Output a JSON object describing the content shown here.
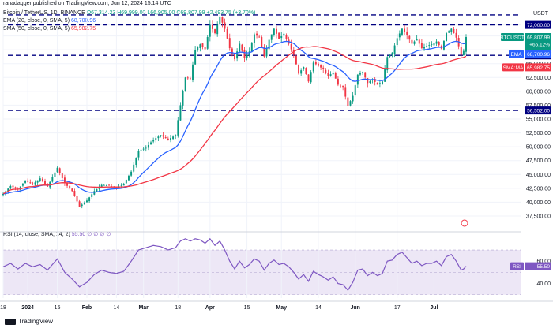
{
  "header": {
    "author": "ranadagger published on TradingView.com, Jun 12, 2024 15:14 UTC",
    "symbol_line": "Bitcoin / TetherUS, 1D, BINANCE",
    "ohlc": "O67,314.23 H69,999.00 L66,905.00 C69,807.99 +2,493.75 (+3.70%)",
    "ema_line": "EMA (20, close, 0, SMA, 5)",
    "ema_value": "68,700.96",
    "sma_line": "SMA (50, close, 0, SMA, 5)",
    "sma_value": "65,982.75",
    "rsi_line": "RSI (14, close, SMA, 14, 2)",
    "rsi_value": "55.50",
    "rsi_extra": "∅ ∅ ∅ ∅",
    "currency": "USDT",
    "watermark": "TradingView"
  },
  "colors": {
    "up": "#089981",
    "down": "#f23645",
    "ema": "#2962ff",
    "sma": "#f23645",
    "rsi": "#7e57c2",
    "level": "#000080",
    "rsi_band": "#ede7f6"
  },
  "chart_data": {
    "type": "candlestick",
    "x_tick_labels": [
      "18",
      "2024",
      "15",
      "Feb",
      "14",
      "Mar",
      "18",
      "Apr",
      "15",
      "May",
      "14",
      "Jun",
      "17",
      "Jul"
    ],
    "y_ticks": [
      "72,000.00",
      "70,000.00",
      "67,500.00",
      "65,000.00",
      "62,500.00",
      "60,000.00",
      "57,500.00",
      "55,000.00",
      "52,500.00",
      "50,000.00",
      "47,500.00",
      "45,000.00",
      "42,500.00",
      "40,000.00",
      "37,500.00"
    ],
    "ylim": [
      35500,
      74500
    ],
    "levels": [
      {
        "value": 73800,
        "label": ""
      },
      {
        "value": 72000,
        "label": "72,000.00"
      },
      {
        "value": 66500,
        "label": "66,500.00"
      },
      {
        "value": 56552,
        "label": "56,552.00"
      }
    ],
    "price_badges": [
      {
        "label": "BTCUSDT",
        "text": "69,807.99",
        "sub": "+65.12%",
        "sub2": "08:45:44"
      },
      {
        "label": "EMA",
        "text": "68,700.96"
      },
      {
        "label": "SMA:MA",
        "text": "65,982.75"
      }
    ],
    "series": [
      {
        "name": "EMA (20)",
        "indicator": "ema20"
      },
      {
        "name": "SMA (50)",
        "indicator": "sma50"
      }
    ],
    "close_anchors": [
      [
        0,
        41500
      ],
      [
        3,
        42900
      ],
      [
        6,
        42300
      ],
      [
        9,
        43900
      ],
      [
        12,
        43200
      ],
      [
        15,
        44300
      ],
      [
        18,
        42800
      ],
      [
        22,
        46200
      ],
      [
        25,
        43400
      ],
      [
        28,
        42000
      ],
      [
        31,
        39200
      ],
      [
        34,
        40300
      ],
      [
        37,
        42000
      ],
      [
        40,
        43100
      ],
      [
        43,
        43000
      ],
      [
        46,
        42600
      ],
      [
        49,
        43300
      ],
      [
        52,
        45500
      ],
      [
        55,
        49300
      ],
      [
        58,
        49800
      ],
      [
        61,
        51300
      ],
      [
        64,
        52100
      ],
      [
        67,
        51300
      ],
      [
        70,
        52100
      ],
      [
        72,
        57500
      ],
      [
        74,
        62500
      ],
      [
        76,
        62200
      ],
      [
        78,
        67500
      ],
      [
        80,
        68500
      ],
      [
        82,
        67600
      ],
      [
        84,
        72000
      ],
      [
        86,
        70500
      ],
      [
        88,
        73500
      ],
      [
        90,
        71300
      ],
      [
        92,
        67800
      ],
      [
        94,
        65800
      ],
      [
        96,
        68600
      ],
      [
        98,
        66000
      ],
      [
        100,
        67200
      ],
      [
        102,
        70300
      ],
      [
        104,
        69800
      ],
      [
        106,
        66300
      ],
      [
        108,
        69300
      ],
      [
        110,
        71300
      ],
      [
        112,
        69500
      ],
      [
        114,
        70400
      ],
      [
        116,
        68600
      ],
      [
        118,
        66600
      ],
      [
        120,
        63200
      ],
      [
        122,
        64400
      ],
      [
        124,
        61800
      ],
      [
        126,
        65200
      ],
      [
        128,
        64600
      ],
      [
        130,
        64000
      ],
      [
        132,
        62800
      ],
      [
        134,
        63400
      ],
      [
        136,
        61200
      ],
      [
        138,
        60800
      ],
      [
        140,
        57300
      ],
      [
        142,
        59200
      ],
      [
        144,
        63000
      ],
      [
        146,
        63500
      ],
      [
        148,
        61500
      ],
      [
        150,
        62200
      ],
      [
        152,
        61200
      ],
      [
        154,
        61800
      ],
      [
        156,
        66200
      ],
      [
        158,
        67000
      ],
      [
        160,
        69600
      ],
      [
        162,
        71300
      ],
      [
        164,
        70100
      ],
      [
        166,
        68600
      ],
      [
        168,
        69400
      ],
      [
        170,
        67800
      ],
      [
        172,
        68200
      ],
      [
        174,
        68500
      ],
      [
        176,
        69000
      ],
      [
        178,
        67700
      ],
      [
        180,
        70500
      ],
      [
        182,
        71300
      ],
      [
        184,
        69700
      ],
      [
        186,
        66600
      ],
      [
        187,
        67300
      ],
      [
        188,
        69808
      ]
    ],
    "rsi": {
      "ylim": [
        27,
        82
      ],
      "ticks": [
        "60.00",
        "40.00"
      ],
      "band": [
        30,
        70
      ],
      "value": 55.5,
      "anchors": [
        [
          0,
          55
        ],
        [
          3,
          58
        ],
        [
          6,
          53
        ],
        [
          9,
          58
        ],
        [
          12,
          55
        ],
        [
          15,
          57
        ],
        [
          18,
          52
        ],
        [
          22,
          62
        ],
        [
          25,
          50
        ],
        [
          28,
          44
        ],
        [
          31,
          37
        ],
        [
          34,
          41
        ],
        [
          37,
          48
        ],
        [
          40,
          52
        ],
        [
          43,
          50
        ],
        [
          46,
          49
        ],
        [
          49,
          51
        ],
        [
          52,
          60
        ],
        [
          55,
          70
        ],
        [
          58,
          72
        ],
        [
          61,
          74
        ],
        [
          64,
          73
        ],
        [
          67,
          70
        ],
        [
          70,
          72
        ],
        [
          72,
          78
        ],
        [
          74,
          80
        ],
        [
          76,
          78
        ],
        [
          78,
          80
        ],
        [
          80,
          79
        ],
        [
          82,
          76
        ],
        [
          84,
          80
        ],
        [
          86,
          74
        ],
        [
          88,
          78
        ],
        [
          90,
          70
        ],
        [
          92,
          60
        ],
        [
          94,
          53
        ],
        [
          96,
          60
        ],
        [
          98,
          54
        ],
        [
          100,
          57
        ],
        [
          102,
          62
        ],
        [
          104,
          60
        ],
        [
          106,
          52
        ],
        [
          108,
          58
        ],
        [
          110,
          61
        ],
        [
          112,
          57
        ],
        [
          114,
          58
        ],
        [
          116,
          55
        ],
        [
          118,
          50
        ],
        [
          120,
          44
        ],
        [
          122,
          48
        ],
        [
          124,
          42
        ],
        [
          126,
          51
        ],
        [
          128,
          48
        ],
        [
          130,
          46
        ],
        [
          132,
          43
        ],
        [
          134,
          46
        ],
        [
          136,
          40
        ],
        [
          138,
          39
        ],
        [
          140,
          34
        ],
        [
          142,
          41
        ],
        [
          144,
          52
        ],
        [
          146,
          53
        ],
        [
          148,
          47
        ],
        [
          150,
          50
        ],
        [
          152,
          47
        ],
        [
          154,
          49
        ],
        [
          156,
          60
        ],
        [
          158,
          61
        ],
        [
          160,
          66
        ],
        [
          162,
          68
        ],
        [
          164,
          63
        ],
        [
          166,
          58
        ],
        [
          168,
          60
        ],
        [
          170,
          56
        ],
        [
          172,
          58
        ],
        [
          174,
          58
        ],
        [
          176,
          60
        ],
        [
          178,
          56
        ],
        [
          180,
          64
        ],
        [
          182,
          66
        ],
        [
          184,
          60
        ],
        [
          186,
          52
        ],
        [
          187,
          53
        ],
        [
          188,
          55.5
        ]
      ]
    }
  }
}
